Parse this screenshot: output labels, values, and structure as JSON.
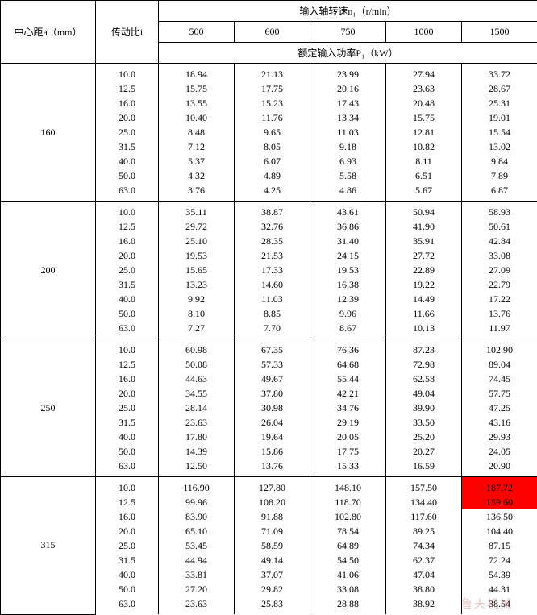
{
  "headers": {
    "center_distance": "中心距a（mm）",
    "ratio": "传动比i",
    "input_speed": "输入轴转速n₁（r/min）",
    "rated_power": "额定输入功率P₁（kW）",
    "speeds": [
      "500",
      "600",
      "750",
      "1000",
      "1500"
    ]
  },
  "groups": [
    {
      "a": "160",
      "rows": [
        {
          "i": "10.0",
          "v": [
            "18.94",
            "21.13",
            "23.99",
            "27.94",
            "33.72"
          ]
        },
        {
          "i": "12.5",
          "v": [
            "15.75",
            "17.75",
            "20.16",
            "23.63",
            "28.67"
          ]
        },
        {
          "i": "16.0",
          "v": [
            "13.55",
            "15.23",
            "17.43",
            "20.48",
            "25.31"
          ]
        },
        {
          "i": "20.0",
          "v": [
            "10.40",
            "11.76",
            "13.34",
            "15.75",
            "19.01"
          ]
        },
        {
          "i": "25.0",
          "v": [
            "8.48",
            "9.65",
            "11.03",
            "12.81",
            "15.54"
          ]
        },
        {
          "i": "31.5",
          "v": [
            "7.12",
            "8.05",
            "9.18",
            "10.82",
            "13.02"
          ]
        },
        {
          "i": "40.0",
          "v": [
            "5.37",
            "6.07",
            "6.93",
            "8.11",
            "9.84"
          ]
        },
        {
          "i": "50.0",
          "v": [
            "4.32",
            "4.89",
            "5.58",
            "6.51",
            "7.89"
          ]
        },
        {
          "i": "63.0",
          "v": [
            "3.76",
            "4.25",
            "4.86",
            "5.67",
            "6.87"
          ]
        }
      ]
    },
    {
      "a": "200",
      "rows": [
        {
          "i": "10.0",
          "v": [
            "35.11",
            "38.87",
            "43.61",
            "50.94",
            "58.93"
          ]
        },
        {
          "i": "12.5",
          "v": [
            "29.72",
            "32.76",
            "36.86",
            "41.90",
            "50.61"
          ]
        },
        {
          "i": "16.0",
          "v": [
            "25.10",
            "28.35",
            "31.40",
            "35.91",
            "42.84"
          ]
        },
        {
          "i": "20.0",
          "v": [
            "19.53",
            "21.53",
            "24.15",
            "27.72",
            "33.08"
          ]
        },
        {
          "i": "25.0",
          "v": [
            "15.65",
            "17.33",
            "19.53",
            "22.89",
            "27.09"
          ]
        },
        {
          "i": "31.5",
          "v": [
            "13.23",
            "14.60",
            "16.38",
            "19.22",
            "22.79"
          ]
        },
        {
          "i": "40.0",
          "v": [
            "9.92",
            "11.03",
            "12.39",
            "14.49",
            "17.22"
          ]
        },
        {
          "i": "50.0",
          "v": [
            "8.10",
            "8.85",
            "9.96",
            "11.66",
            "13.76"
          ]
        },
        {
          "i": "63.0",
          "v": [
            "7.27",
            "7.70",
            "8.67",
            "10.13",
            "11.97"
          ]
        }
      ]
    },
    {
      "a": "250",
      "rows": [
        {
          "i": "10.0",
          "v": [
            "60.98",
            "67.35",
            "76.36",
            "87.23",
            "102.90"
          ]
        },
        {
          "i": "12.5",
          "v": [
            "50.08",
            "57.33",
            "64.68",
            "72.98",
            "89.04"
          ]
        },
        {
          "i": "16.0",
          "v": [
            "44.63",
            "49.67",
            "55.44",
            "62.58",
            "74.45"
          ]
        },
        {
          "i": "20.0",
          "v": [
            "34.55",
            "37.80",
            "42.21",
            "49.04",
            "57.75"
          ]
        },
        {
          "i": "25.0",
          "v": [
            "28.14",
            "30.98",
            "34.76",
            "39.90",
            "47.25"
          ]
        },
        {
          "i": "31.5",
          "v": [
            "23.63",
            "26.04",
            "29.19",
            "33.50",
            "43.16"
          ]
        },
        {
          "i": "40.0",
          "v": [
            "17.80",
            "19.64",
            "20.05",
            "25.20",
            "29.93"
          ]
        },
        {
          "i": "50.0",
          "v": [
            "14.39",
            "15.86",
            "17.75",
            "20.27",
            "24.05"
          ]
        },
        {
          "i": "63.0",
          "v": [
            "12.50",
            "13.76",
            "15.33",
            "16.59",
            "20.90"
          ]
        }
      ]
    },
    {
      "a": "315",
      "rows": [
        {
          "i": "10.0",
          "v": [
            "116.90",
            "127.80",
            "148.10",
            "157.50",
            "187.72"
          ],
          "hl": [
            4
          ]
        },
        {
          "i": "12.5",
          "v": [
            "99.96",
            "108.20",
            "118.70",
            "134.40",
            "159.60"
          ],
          "hl": [
            4
          ]
        },
        {
          "i": "16.0",
          "v": [
            "83.90",
            "91.88",
            "102.80",
            "117.60",
            "136.50"
          ]
        },
        {
          "i": "20.0",
          "v": [
            "65.10",
            "71.09",
            "78.54",
            "89.25",
            "104.40"
          ]
        },
        {
          "i": "25.0",
          "v": [
            "53.45",
            "58.59",
            "64.89",
            "74.34",
            "87.15"
          ]
        },
        {
          "i": "31.5",
          "v": [
            "44.94",
            "49.14",
            "54.50",
            "62.37",
            "72.24"
          ]
        },
        {
          "i": "40.0",
          "v": [
            "33.81",
            "37.07",
            "41.06",
            "47.04",
            "54.39"
          ]
        },
        {
          "i": "50.0",
          "v": [
            "27.20",
            "29.82",
            "33.08",
            "38.80",
            "44.31"
          ]
        },
        {
          "i": "63.0",
          "v": [
            "23.63",
            "25.83",
            "28.88",
            "38.92",
            "38.54"
          ]
        }
      ]
    }
  ],
  "watermark": "鲁夫机械",
  "style": {
    "highlight_bg": "#ff0000",
    "border_color": "#000000",
    "font_family": "SimSun",
    "cell_font_size": 12,
    "col_widths": {
      "a": 118,
      "i": 78,
      "n": 94
    }
  }
}
